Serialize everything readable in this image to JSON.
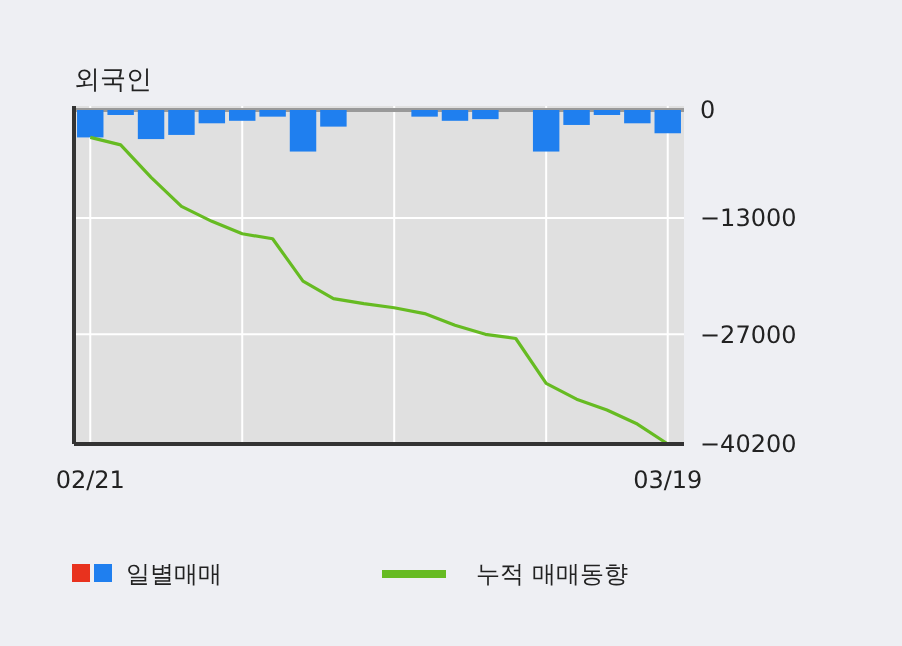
{
  "chart_data": {
    "type": "bar",
    "title": "외국인",
    "categories": [
      "02/21",
      null,
      null,
      null,
      null,
      null,
      null,
      null,
      null,
      null,
      null,
      null,
      null,
      null,
      null,
      null,
      null,
      null,
      null,
      "03/19"
    ],
    "series": [
      {
        "name": "일별매매",
        "color": "#1f7fef",
        "values": [
          -3300,
          -600,
          -3500,
          -3000,
          -1600,
          -1300,
          -800,
          -5000,
          -2000,
          0,
          0,
          -800,
          -1300,
          -1100,
          0,
          -5000,
          -1800,
          -600,
          -1600,
          -2800
        ]
      },
      {
        "name": "누적 매매동향",
        "type": "line",
        "color": "#66bb22",
        "values": [
          -3300,
          -4200,
          -8100,
          -11600,
          -13400,
          -14900,
          -15500,
          -20600,
          -22700,
          -23300,
          -23800,
          -24500,
          -25900,
          -27000,
          -27500,
          -32900,
          -34800,
          -36100,
          -37800,
          -40200
        ]
      }
    ],
    "ylim": [
      -40200,
      0
    ],
    "yticks": [
      0,
      -13000,
      -27000,
      -40200
    ],
    "grid": true,
    "legend": "bottom"
  }
}
